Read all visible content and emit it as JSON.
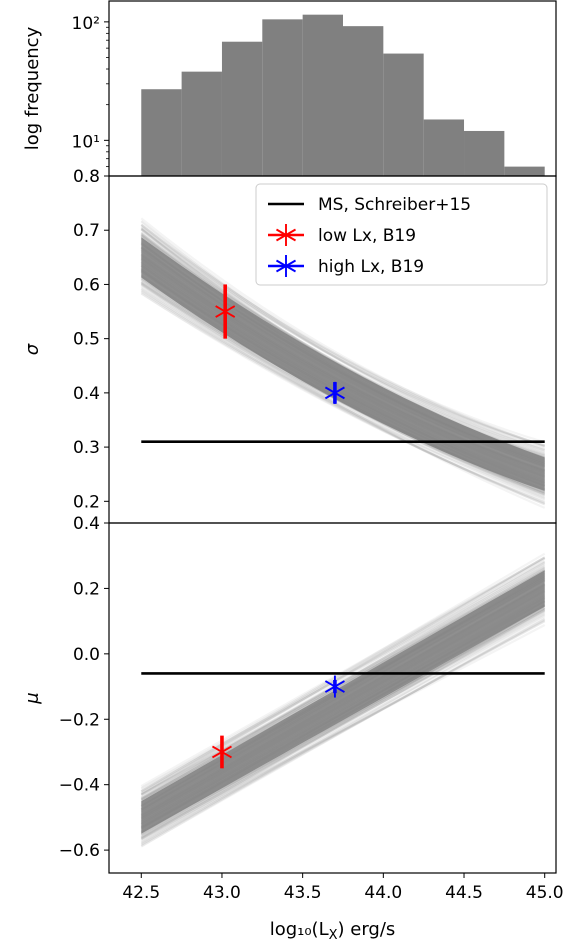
{
  "chart_data": [
    {
      "type": "bar",
      "ylabel": "log frequency",
      "yscale": "log",
      "ylim": [
        5,
        150
      ],
      "x_bin_edges": [
        42.5,
        42.75,
        43.0,
        43.25,
        43.5,
        43.75,
        44.0,
        44.25,
        44.5,
        44.75,
        45.0
      ],
      "values": [
        27,
        38,
        68,
        105,
        115,
        92,
        54,
        15,
        12,
        6
      ],
      "yticks": [
        "10¹",
        "10²"
      ],
      "bar_color": "#808080"
    },
    {
      "type": "line",
      "ylabel": "σ",
      "ylim": [
        0.16,
        0.8
      ],
      "yticks": [
        "0.2",
        "0.3",
        "0.4",
        "0.5",
        "0.6",
        "0.7",
        "0.8"
      ],
      "band": {
        "color": "#808080",
        "x": [
          42.5,
          45.0
        ],
        "center": [
          0.65,
          0.25
        ],
        "spread": [
          0.06,
          0.05
        ]
      },
      "series": [
        {
          "name": "MS, Schreiber+15",
          "color": "#000000",
          "x": [
            42.5,
            45.0
          ],
          "y": [
            0.31,
            0.31
          ]
        },
        {
          "name": "low Lx, B19",
          "color": "#ff0000",
          "x": [
            43.02
          ],
          "y": [
            0.55
          ],
          "yerr": 0.05
        },
        {
          "name": "high Lx, B19",
          "color": "#0000ff",
          "x": [
            43.7
          ],
          "y": [
            0.4
          ],
          "yerr": 0.02
        }
      ],
      "legend": "top-right"
    },
    {
      "type": "line",
      "ylabel": "μ",
      "xlabel": "log₁₀(L",
      "xlabel_sub": "X",
      "xlabel_tail": ") erg/s",
      "ylim": [
        -0.67,
        0.4
      ],
      "xlim": [
        42.3,
        45.07
      ],
      "xticks": [
        "42.5",
        "43.0",
        "43.5",
        "44.0",
        "44.5",
        "45.0"
      ],
      "yticks": [
        "−0.6",
        "−0.4",
        "−0.2",
        "0.0",
        "0.2",
        "0.4"
      ],
      "band": {
        "color": "#808080",
        "x": [
          42.5,
          45.0
        ],
        "center": [
          -0.5,
          0.2
        ],
        "spread": [
          0.08,
          0.09
        ]
      },
      "series": [
        {
          "name": "MS, Schreiber+15",
          "color": "#000000",
          "x": [
            42.5,
            45.0
          ],
          "y": [
            -0.06,
            -0.06
          ]
        },
        {
          "name": "low Lx, B19",
          "color": "#ff0000",
          "x": [
            43.0
          ],
          "y": [
            -0.3
          ],
          "yerr": 0.05
        },
        {
          "name": "high Lx, B19",
          "color": "#0000ff",
          "x": [
            43.7
          ],
          "y": [
            -0.1
          ],
          "yerr": 0.02
        }
      ]
    }
  ]
}
